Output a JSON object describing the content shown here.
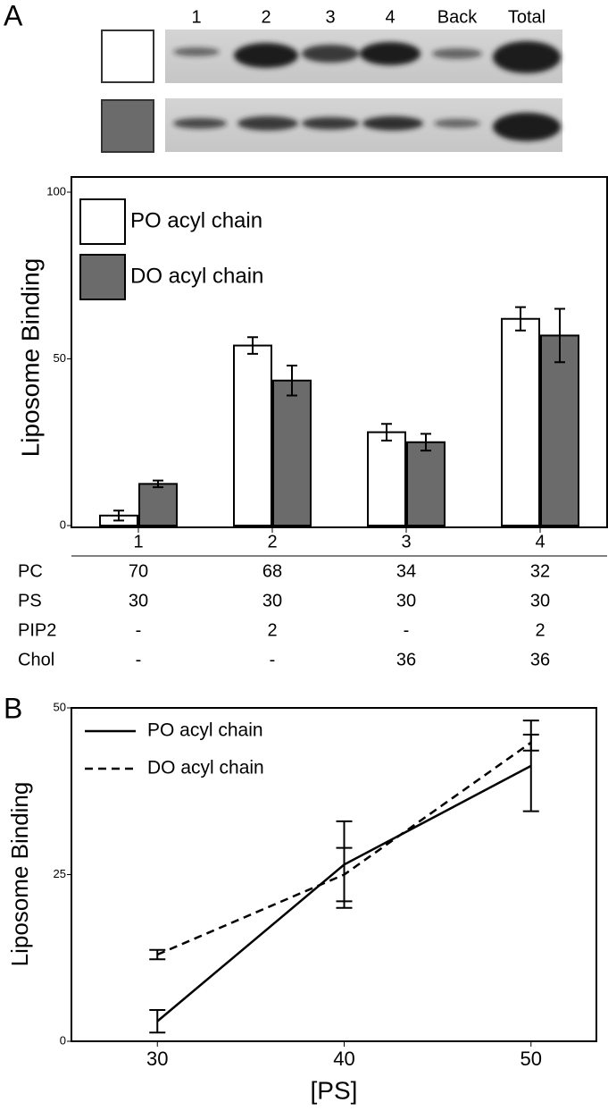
{
  "panels": [
    "A",
    "B"
  ],
  "blot": {
    "lanes": [
      "1",
      "2",
      "3",
      "4",
      "Back",
      "Total"
    ]
  },
  "chart_data": [
    {
      "type": "bar",
      "ylabel": "Liposome Binding",
      "categories": [
        "1",
        "2",
        "3",
        "4"
      ],
      "series": [
        {
          "name": "PO acyl chain",
          "color": "#ffffff",
          "values": [
            3,
            54,
            28,
            62
          ],
          "errors": [
            1.5,
            2.5,
            2.5,
            3.5
          ]
        },
        {
          "name": "DO acyl chain",
          "color": "#6b6b6b",
          "values": [
            12.5,
            43.5,
            25,
            57
          ],
          "errors": [
            1,
            4.5,
            2.5,
            8
          ]
        }
      ],
      "ylim": [
        0,
        100
      ],
      "yticks": [
        0,
        50,
        100
      ],
      "legend": "upper left",
      "table": {
        "rows": [
          {
            "label": "PC",
            "values": [
              70,
              68,
              34,
              32
            ]
          },
          {
            "label": "PS",
            "values": [
              30,
              30,
              30,
              30
            ]
          },
          {
            "label": "PIP2",
            "values": [
              "-",
              2,
              "-",
              2
            ]
          },
          {
            "label": "Chol",
            "values": [
              "-",
              "-",
              36,
              36
            ]
          }
        ]
      }
    },
    {
      "type": "line",
      "xlabel": "[PS]",
      "ylabel": "Liposome Binding",
      "x": [
        30,
        40,
        50
      ],
      "series": [
        {
          "name": "PO acyl chain",
          "color": "#000000",
          "linestyle": "solid",
          "values": [
            3,
            26.5,
            41.3
          ],
          "errors": [
            1.7,
            6.5,
            6.8
          ]
        },
        {
          "name": "DO acyl chain",
          "color": "#000000",
          "linestyle": "dashed",
          "values": [
            13,
            25,
            44.8
          ],
          "errors": [
            0.7,
            4,
            1.2
          ]
        }
      ],
      "xlim": [
        25.4,
        53.5
      ],
      "xticks": [
        30,
        40,
        50
      ],
      "ylim": [
        0,
        50
      ],
      "yticks": [
        0,
        25,
        50
      ],
      "legend": "upper left"
    }
  ]
}
